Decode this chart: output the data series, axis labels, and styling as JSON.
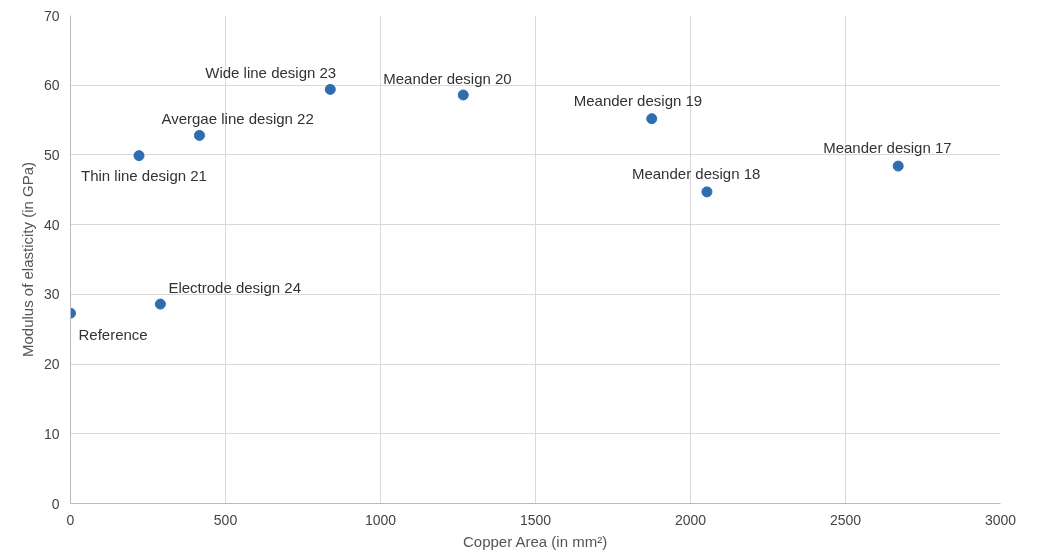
{
  "chart_data": {
    "type": "scatter",
    "xlabel": "Copper Area (in mm²)",
    "ylabel": "Modulus of elasticity (in GPa)",
    "x": [
      0,
      290,
      221,
      416,
      838,
      1267,
      1875,
      2053,
      2670
    ],
    "values": [
      27.3,
      28.6,
      49.9,
      52.8,
      59.4,
      58.6,
      55.2,
      44.7,
      48.4
    ],
    "color": "#2e6db4",
    "marker": "circle",
    "grid": true,
    "xlim": [
      0,
      3000
    ],
    "xticks": [
      0,
      500,
      1000,
      1500,
      2000,
      2500,
      3000
    ],
    "ylim": [
      0,
      70
    ],
    "yticks": [
      0,
      10,
      20,
      30,
      40,
      50,
      60,
      70
    ],
    "annotations": [
      {
        "text": "Reference",
        "x": 0,
        "y": 27.3
      },
      {
        "text": "Electrode design 24",
        "x": 290,
        "y": 28.6
      },
      {
        "text": "Thin line design 21",
        "x": 221,
        "y": 49.9
      },
      {
        "text": "Avergae line design 22",
        "x": 416,
        "y": 52.8
      },
      {
        "text": "Wide line design 23",
        "x": 838,
        "y": 59.4
      },
      {
        "text": "Meander design 20",
        "x": 1267,
        "y": 58.6
      },
      {
        "text": "Meander design 19",
        "x": 1875,
        "y": 55.2
      },
      {
        "text": "Meander design 18",
        "x": 2053,
        "y": 44.7
      },
      {
        "text": "Meander design 17",
        "x": 2670,
        "y": 48.4
      }
    ]
  }
}
